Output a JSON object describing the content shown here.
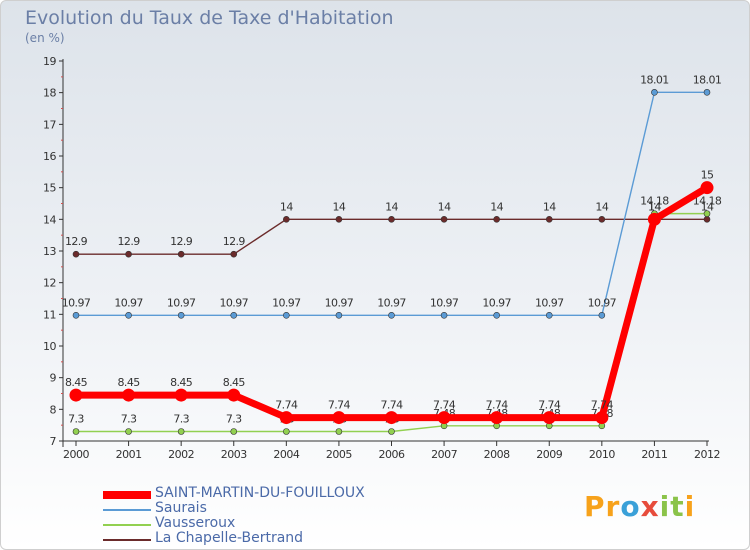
{
  "chart_data": {
    "type": "line",
    "title": "Evolution du Taux de Taxe d'Habitation",
    "subtitle": "(en %)",
    "xlabel": "",
    "ylabel": "",
    "categories": [
      "2000",
      "2001",
      "2002",
      "2003",
      "2004",
      "2005",
      "2006",
      "2007",
      "2008",
      "2009",
      "2010",
      "2011",
      "2012"
    ],
    "ylim": [
      7,
      19
    ],
    "yticks": [
      "7",
      "8",
      "9",
      "10",
      "11",
      "12",
      "13",
      "14",
      "15",
      "16",
      "17",
      "18",
      "19"
    ],
    "series": [
      {
        "name": "La Chapelle-Bertrand",
        "color": "#6b2b2b",
        "values": [
          12.9,
          12.9,
          12.9,
          12.9,
          14,
          14,
          14,
          14,
          14,
          14,
          14,
          14,
          14
        ],
        "labels": [
          "12.9",
          "12.9",
          "12.9",
          "12.9",
          "14",
          "14",
          "14",
          "14",
          "14",
          "14",
          "14",
          "14",
          "14"
        ]
      },
      {
        "name": "Saurais",
        "color": "#5b9bd5",
        "values": [
          10.97,
          10.97,
          10.97,
          10.97,
          10.97,
          10.97,
          10.97,
          10.97,
          10.97,
          10.97,
          10.97,
          18.01,
          18.01
        ],
        "labels": [
          "10.97",
          "10.97",
          "10.97",
          "10.97",
          "10.97",
          "10.97",
          "10.97",
          "10.97",
          "10.97",
          "10.97",
          "10.97",
          "18.01",
          "18.01"
        ]
      },
      {
        "name": "Vausseroux",
        "color": "#92d050",
        "values": [
          7.3,
          7.3,
          7.3,
          7.3,
          7.3,
          7.3,
          7.3,
          7.48,
          7.48,
          7.48,
          7.48,
          14.18,
          14.18
        ],
        "labels": [
          "7.3",
          "7.3",
          "7.3",
          "7.3",
          "7.3",
          "7.3",
          "7.3",
          "7.48",
          "7.48",
          "7.48",
          "7.48",
          "14.18",
          "14.18"
        ]
      },
      {
        "name": "SAINT-MARTIN-DU-FOUILLOUX",
        "color": "#ff0000",
        "values": [
          8.45,
          8.45,
          8.45,
          8.45,
          7.74,
          7.74,
          7.74,
          7.74,
          7.74,
          7.74,
          7.74,
          14,
          15
        ],
        "labels": [
          "8.45",
          "8.45",
          "8.45",
          "8.45",
          "7.74",
          "7.74",
          "7.74",
          "7.74",
          "7.74",
          "7.74",
          "7.74",
          "14",
          "15"
        ]
      }
    ],
    "legend": [
      {
        "name": "SAINT-MARTIN-DU-FOUILLOUX",
        "color": "#ff0000"
      },
      {
        "name": "Saurais",
        "color": "#5b9bd5"
      },
      {
        "name": "Vausseroux",
        "color": "#92d050"
      },
      {
        "name": "La Chapelle-Bertrand",
        "color": "#6b2b2b"
      }
    ],
    "legend_position": "bottom-left"
  },
  "brand": {
    "letters": [
      "P",
      "r",
      "o",
      "x",
      "i",
      "t",
      "i"
    ],
    "colors": [
      "#f7a21b",
      "#f7a21b",
      "#3aa0d8",
      "#e74c3c",
      "#8bc34a",
      "#8bc34a",
      "#f7a21b"
    ]
  }
}
